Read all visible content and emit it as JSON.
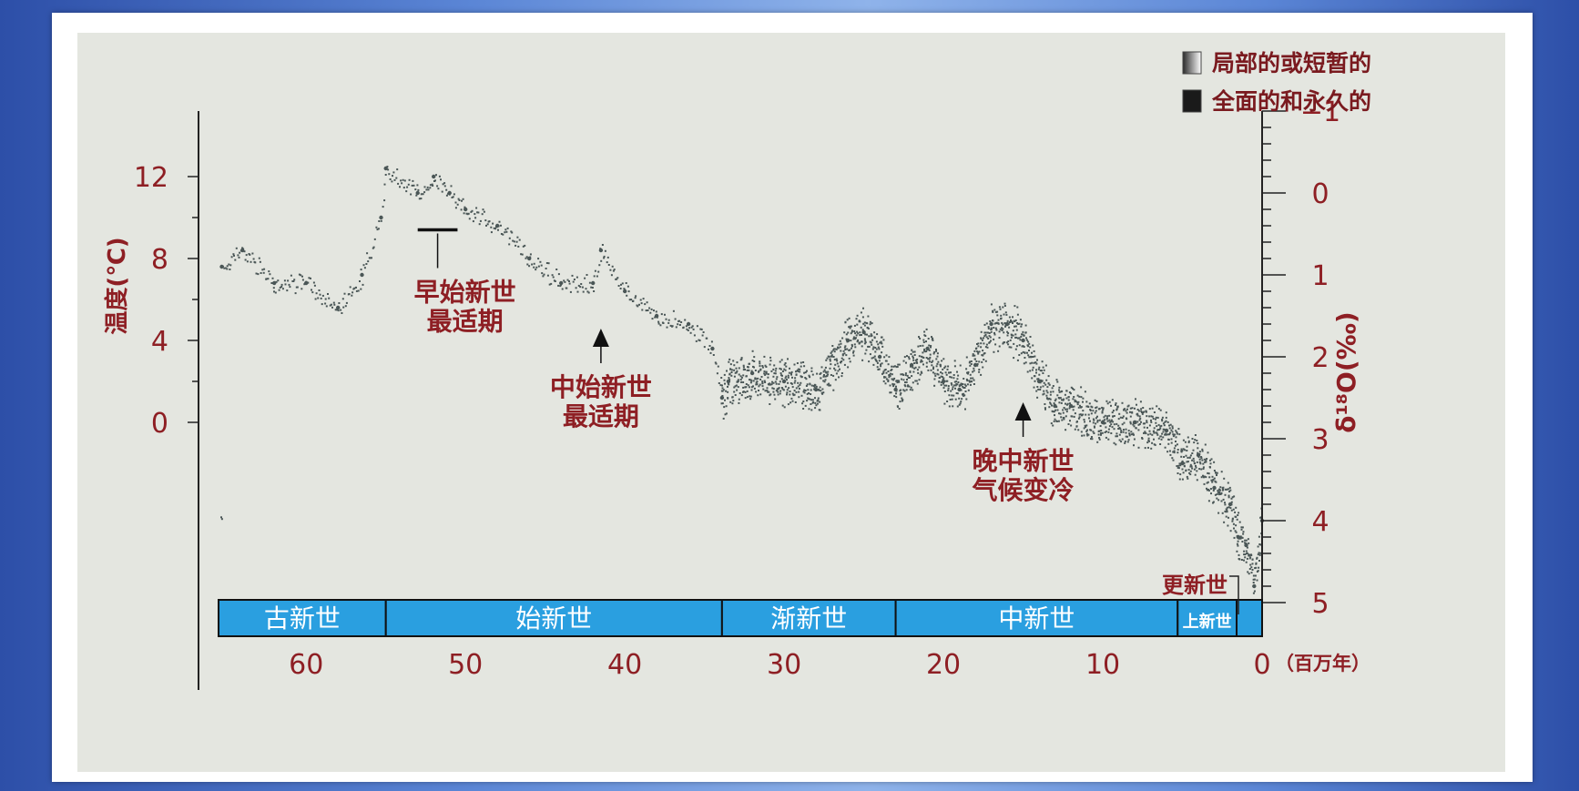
{
  "chart_data": {
    "type": "scatter",
    "title": "",
    "legend": [
      {
        "label": "局部的或短暂的",
        "swatch": "gradient"
      },
      {
        "label": "全面的和永久的",
        "swatch": "solid"
      }
    ],
    "x_axis": {
      "unit_label": "（百万年）",
      "reversed": true,
      "xlim": [
        65.5,
        0
      ],
      "ticks": [
        60,
        50,
        40,
        30,
        20,
        10,
        0
      ]
    },
    "y_left": {
      "label": "温度(℃)",
      "ylim": [
        0,
        12
      ],
      "ticks": [
        0,
        4,
        8,
        12
      ]
    },
    "y_right": {
      "label": "δ¹⁸O(‰)",
      "ylim": [
        -1,
        5
      ],
      "reversed": true,
      "ticks": [
        "−1",
        "0",
        "1",
        "2",
        "3",
        "4",
        "5"
      ]
    },
    "series": [
      {
        "x": [
          65.3,
          64,
          62,
          60,
          58,
          56.5,
          55.3,
          55,
          53,
          52,
          51,
          50,
          48,
          46,
          44,
          42,
          41.5,
          40,
          38,
          36,
          34.5,
          33.9,
          33.5,
          32,
          30,
          28,
          26,
          25,
          24,
          23,
          22,
          21,
          20,
          19,
          18,
          17,
          16,
          15,
          14,
          13,
          12,
          10,
          8,
          6,
          5,
          4,
          3,
          2,
          1.5,
          1,
          0.5,
          0
        ],
        "y": [
          0.9,
          0.7,
          1.1,
          1.1,
          1.4,
          1.0,
          0.3,
          -0.3,
          0.0,
          -0.2,
          0.0,
          0.2,
          0.4,
          0.8,
          1.1,
          1.1,
          0.7,
          1.2,
          1.5,
          1.6,
          1.9,
          2.5,
          2.3,
          2.2,
          2.3,
          2.4,
          1.8,
          1.7,
          2.0,
          2.4,
          2.1,
          1.9,
          2.3,
          2.4,
          2.1,
          1.6,
          1.6,
          1.8,
          2.3,
          2.6,
          2.6,
          2.8,
          2.8,
          2.9,
          3.3,
          3.2,
          3.6,
          3.8,
          4.2,
          4.3,
          4.8,
          4.0
        ]
      }
    ],
    "epochs": [
      {
        "name": "古新世",
        "start": 65.5,
        "end": 55.0
      },
      {
        "name": "始新世",
        "start": 55.0,
        "end": 33.9
      },
      {
        "name": "渐新世",
        "start": 33.9,
        "end": 23.0
      },
      {
        "name": "中新世",
        "start": 23.0,
        "end": 5.3
      },
      {
        "name": "上新世",
        "start": 5.3,
        "end": 1.6
      },
      {
        "name": "更新世",
        "start": 1.6,
        "end": 0.0
      }
    ],
    "annotations": [
      {
        "text": [
          "早始新世",
          "最适期"
        ],
        "x_range": [
          53,
          50.5
        ],
        "y": 0.45,
        "marker": "bar"
      },
      {
        "text": [
          "中始新世",
          "最适期"
        ],
        "x": 41.5,
        "y": 1.9,
        "marker": "arrow"
      },
      {
        "text": [
          "晚中新世",
          "气候变冷"
        ],
        "x": 15,
        "y": 2.8,
        "marker": "arrow"
      }
    ],
    "colors": {
      "points": "#4a5656",
      "label": "#8e1f24",
      "epoch_band": "#2a9fe0",
      "plot_bg": "#e4e6e0"
    }
  }
}
